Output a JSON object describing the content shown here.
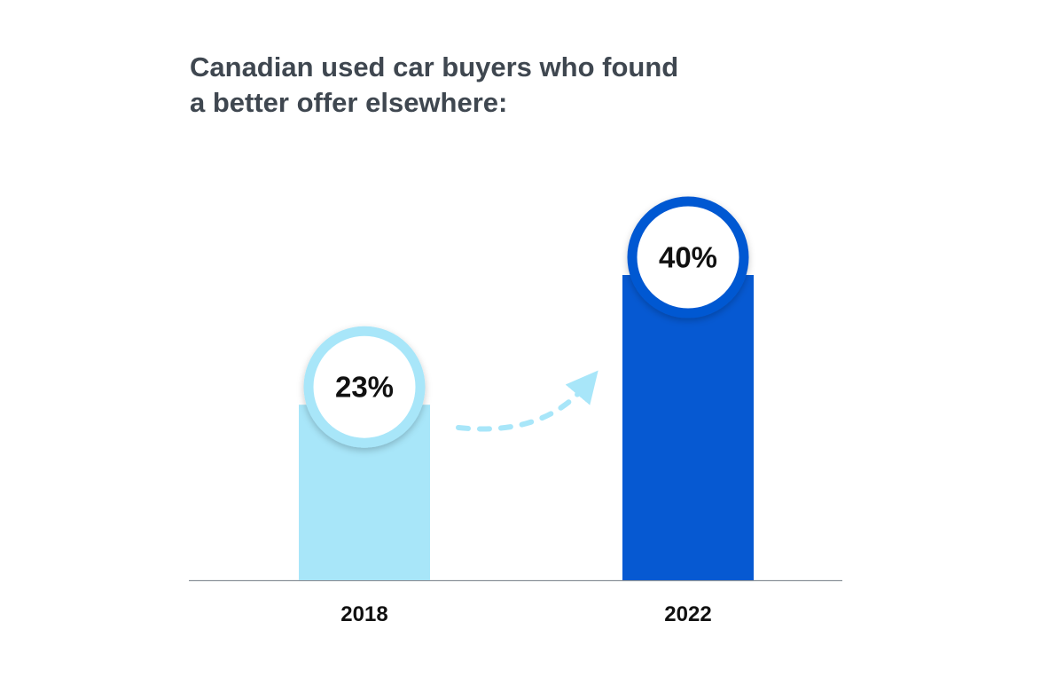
{
  "title_lines": [
    "Canadian used car buyers who found",
    "a better offer elsewhere:"
  ],
  "chart_data": {
    "type": "bar",
    "title": "Canadian used car buyers who found a better offer elsewhere:",
    "categories": [
      "2018",
      "2022"
    ],
    "values": [
      23,
      40
    ],
    "data_labels": [
      "23%",
      "40%"
    ],
    "unit": "%",
    "ylim": [
      0,
      40
    ],
    "grid": false,
    "legend": "none",
    "colors": {
      "bars": [
        "#a8e6f9",
        "#0659d2"
      ],
      "label_ring": [
        "#a8e6f9",
        "#0659d2"
      ],
      "arrow": "#a8e6f9",
      "baseline": "#8c939b",
      "title": "#3f4750"
    }
  }
}
